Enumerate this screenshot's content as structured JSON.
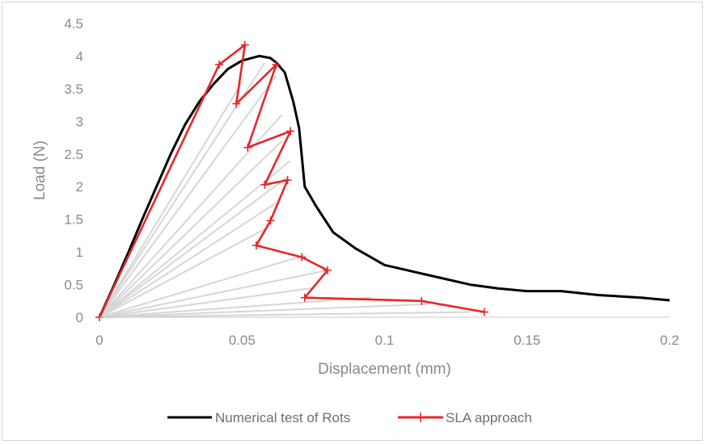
{
  "chart_data": {
    "type": "line",
    "title": "",
    "xlabel": "Displacement (mm)",
    "ylabel": "Load (N)",
    "xlim": [
      0,
      0.2
    ],
    "ylim": [
      0,
      4.5
    ],
    "xticks": [
      0,
      0.05,
      0.1,
      0.15,
      0.2
    ],
    "xtick_labels": [
      "0",
      "0.05",
      "0.1",
      "0.15",
      "0.2"
    ],
    "yticks": [
      0,
      0.5,
      1,
      1.5,
      2,
      2.5,
      3,
      3.5,
      4,
      4.5
    ],
    "ytick_labels": [
      "0",
      "0.5",
      "1",
      "1.5",
      "2",
      "2.5",
      "3",
      "3.5",
      "4",
      "4.5"
    ],
    "grid": false,
    "legend_position": "bottom",
    "series": [
      {
        "name": "Numerical test of Rots",
        "color": "#000000",
        "marker": "none",
        "x": [
          0,
          0.005,
          0.01,
          0.015,
          0.02,
          0.025,
          0.03,
          0.035,
          0.04,
          0.045,
          0.05,
          0.056,
          0.06,
          0.062,
          0.065,
          0.068,
          0.07,
          0.072,
          0.076,
          0.082,
          0.09,
          0.1,
          0.11,
          0.12,
          0.13,
          0.14,
          0.15,
          0.162,
          0.175,
          0.19,
          0.2
        ],
        "y": [
          0,
          0.48,
          0.98,
          1.5,
          2.0,
          2.5,
          2.95,
          3.3,
          3.57,
          3.8,
          3.93,
          4.0,
          3.97,
          3.9,
          3.75,
          3.3,
          2.9,
          2.0,
          1.7,
          1.3,
          1.05,
          0.8,
          0.7,
          0.6,
          0.5,
          0.44,
          0.4,
          0.4,
          0.34,
          0.3,
          0.26
        ]
      },
      {
        "name": "SLA approach",
        "color": "#e8262a",
        "marker": "plus",
        "x": [
          0,
          0.042,
          0.051,
          0.048,
          0.062,
          0.052,
          0.067,
          0.058,
          0.066,
          0.06,
          0.055,
          0.071,
          0.08,
          0.072,
          0.113,
          0.135
        ],
        "y": [
          0,
          3.87,
          4.17,
          3.27,
          3.87,
          2.6,
          2.85,
          2.03,
          2.1,
          1.48,
          1.1,
          0.92,
          0.72,
          0.3,
          0.25,
          0.08
        ]
      }
    ],
    "secant_lines": {
      "color": "#d6d6d6",
      "from": [
        0,
        0
      ],
      "to_x": [
        0.05,
        0.058,
        0.062,
        0.064,
        0.064,
        0.067,
        0.066,
        0.062,
        0.058,
        0.072,
        0.08,
        0.075,
        0.095,
        0.115,
        0.13
      ],
      "to_y": [
        3.6,
        3.9,
        3.7,
        3.1,
        2.7,
        2.4,
        2.15,
        1.75,
        1.35,
        0.95,
        0.72,
        0.45,
        0.3,
        0.2,
        0.08
      ]
    }
  }
}
